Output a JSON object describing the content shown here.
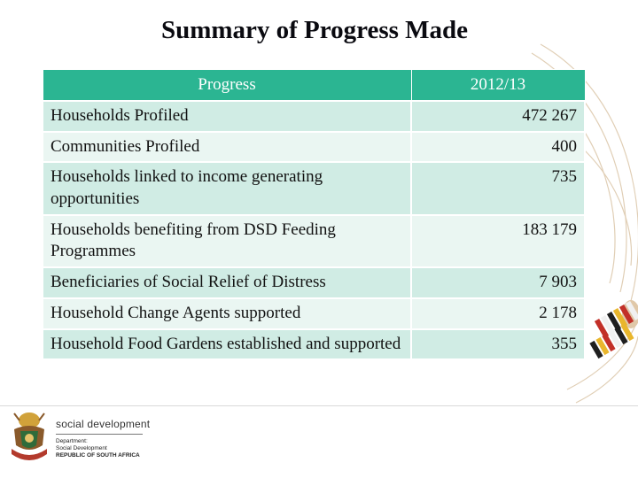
{
  "title": "Summary of Progress Made",
  "table": {
    "headers": [
      "Progress",
      "2012/13"
    ],
    "rows": [
      {
        "label": "Households Profiled",
        "value": "472 267"
      },
      {
        "label": "Communities  Profiled",
        "value": "400"
      },
      {
        "label": "Households linked to income generating opportunities",
        "value": "735"
      },
      {
        "label": "Households benefiting from DSD Feeding Programmes",
        "value": "183 179"
      },
      {
        "label": "Beneficiaries of Social Relief of Distress",
        "value": "7 903"
      },
      {
        "label": "Household Change Agents supported",
        "value": "2 178"
      },
      {
        "label": "Household Food Gardens established and supported",
        "value": "355"
      }
    ]
  },
  "footer": {
    "org_name": "social development",
    "dept_line1": "Department:",
    "dept_line2": "Social Development",
    "dept_line3": "REPUBLIC OF SOUTH AFRICA"
  },
  "colors": {
    "header_bg": "#2bb592",
    "row_odd": "#d0ece4",
    "row_even": "#eaf6f2"
  },
  "icons": {
    "logo": "coat-of-arms-icon",
    "decoration": "beaded-necklace-decoration"
  }
}
